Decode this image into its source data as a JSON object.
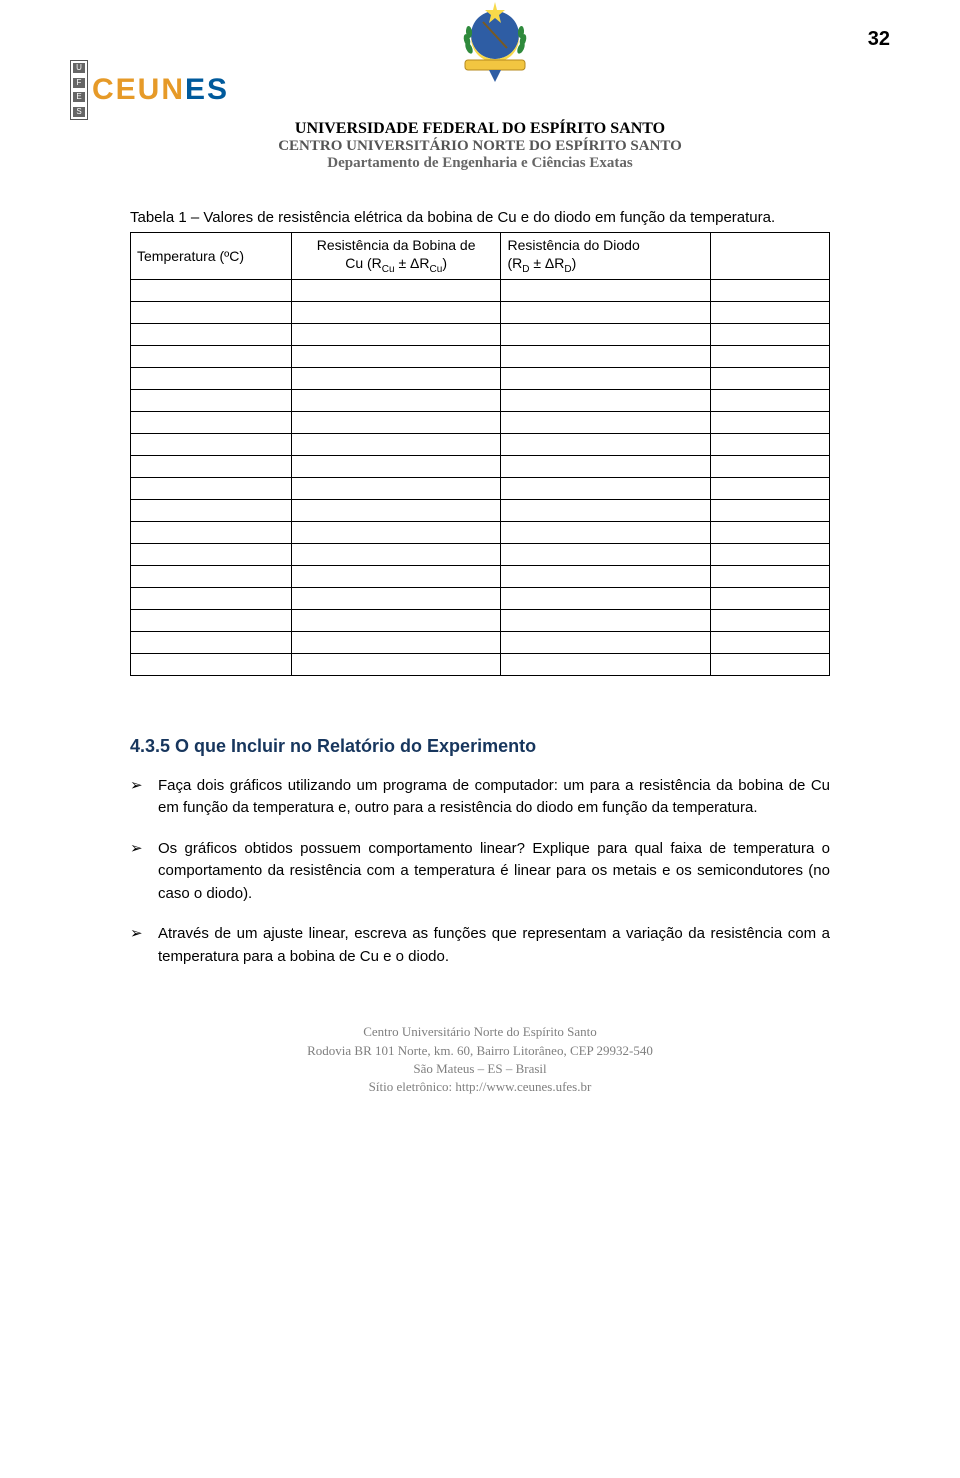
{
  "page_number": "32",
  "logo": {
    "ufes_letters": [
      "U",
      "F",
      "E",
      "S"
    ],
    "ceunes_left": "CEUN",
    "ceunes_right": "ES"
  },
  "university": {
    "line1": "UNIVERSIDADE FEDERAL DO ESPÍRITO SANTO",
    "line2": "CENTRO UNIVERSITÁRIO NORTE DO ESPÍRITO SANTO",
    "line3": "Departamento de Engenharia e Ciências Exatas"
  },
  "table": {
    "caption": "Tabela 1 – Valores de resistência elétrica da bobina de Cu e do diodo em função da temperatura.",
    "headers": {
      "c1": "Temperatura (ºC)",
      "c2a": "Resistência da Bobina de",
      "c2b": "Cu (R",
      "c2c": " ± ΔR",
      "c2d": ")",
      "c3a": "Resistência do Diodo",
      "c3b": "(R",
      "c3c": " ± ΔR",
      "c3d": ")",
      "sub_cu": "Cu",
      "sub_d": "D"
    },
    "empty_rows": 18
  },
  "section_heading": "4.3.5 O que Incluir no Relatório do Experimento",
  "bullets": [
    "Faça dois gráficos utilizando um programa de computador: um para a resistência da bobina de Cu em função da temperatura e, outro para a resistência do diodo em função da temperatura.",
    "Os gráficos obtidos possuem comportamento linear? Explique para qual faixa de temperatura o comportamento da resistência com a temperatura é linear para os metais e os semicondutores (no caso o diodo).",
    "Através de um ajuste linear, escreva as funções que representam a variação da resistência com a temperatura para a bobina de Cu e o diodo."
  ],
  "footer": {
    "l1": "Centro Universitário Norte do Espírito Santo",
    "l2": "Rodovia BR 101 Norte, km. 60, Bairro Litorâneo, CEP 29932-540",
    "l3": "São Mateus – ES – Brasil",
    "l4_prefix": "Sítio eletrônico: ",
    "l4_url": "http://www.ceunes.ufes.br"
  },
  "coat_colors": {
    "blue": "#2e5da4",
    "yellow": "#f8d94a",
    "green": "#2f8a3c",
    "band": "#f2c641"
  }
}
